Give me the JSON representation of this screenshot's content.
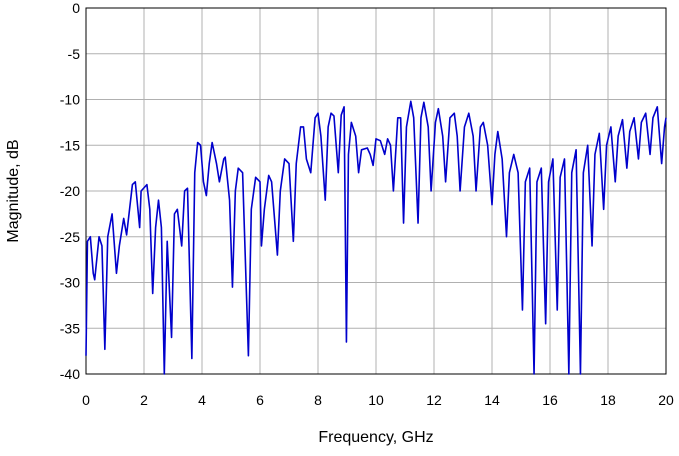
{
  "chart_data": {
    "type": "line",
    "xlabel": "Frequency, GHz",
    "ylabel": "Magnitude, dB",
    "xlim": [
      0,
      20
    ],
    "xticks": [
      0,
      2,
      4,
      6,
      8,
      10,
      12,
      14,
      16,
      18,
      20
    ],
    "ylim": [
      -40,
      0
    ],
    "yticks": [
      0,
      -5,
      -10,
      -15,
      -20,
      -25,
      -30,
      -35,
      -40
    ],
    "grid": true,
    "series": [
      {
        "color": "#0000cc",
        "x": [
          0.0,
          0.05,
          0.15,
          0.25,
          0.3,
          0.45,
          0.55,
          0.65,
          0.75,
          0.9,
          1.05,
          1.15,
          1.3,
          1.4,
          1.6,
          1.7,
          1.85,
          1.9,
          2.1,
          2.2,
          2.3,
          2.4,
          2.5,
          2.6,
          2.7,
          2.8,
          2.95,
          3.05,
          3.15,
          3.3,
          3.4,
          3.5,
          3.65,
          3.75,
          3.85,
          3.95,
          4.05,
          4.15,
          4.25,
          4.35,
          4.5,
          4.6,
          4.75,
          4.8,
          4.95,
          5.05,
          5.15,
          5.25,
          5.4,
          5.6,
          5.7,
          5.85,
          6.0,
          6.05,
          6.15,
          6.3,
          6.4,
          6.6,
          6.7,
          6.85,
          7.0,
          7.15,
          7.25,
          7.4,
          7.5,
          7.6,
          7.75,
          7.9,
          8.0,
          8.1,
          8.25,
          8.35,
          8.45,
          8.55,
          8.7,
          8.8,
          8.9,
          8.98,
          9.05,
          9.15,
          9.3,
          9.4,
          9.5,
          9.7,
          9.8,
          9.9,
          10.0,
          10.15,
          10.3,
          10.4,
          10.5,
          10.6,
          10.75,
          10.85,
          10.95,
          11.05,
          11.2,
          11.3,
          11.45,
          11.55,
          11.65,
          11.8,
          11.9,
          12.05,
          12.15,
          12.3,
          12.4,
          12.55,
          12.7,
          12.8,
          12.9,
          13.05,
          13.2,
          13.35,
          13.45,
          13.6,
          13.7,
          13.85,
          14.0,
          14.1,
          14.2,
          14.35,
          14.5,
          14.6,
          14.75,
          14.9,
          15.05,
          15.15,
          15.3,
          15.45,
          15.55,
          15.7,
          15.85,
          15.95,
          16.1,
          16.25,
          16.35,
          16.5,
          16.65,
          16.75,
          16.9,
          17.05,
          17.15,
          17.3,
          17.45,
          17.55,
          17.7,
          17.85,
          17.95,
          18.1,
          18.25,
          18.35,
          18.5,
          18.65,
          18.75,
          18.9,
          19.05,
          19.15,
          19.3,
          19.45,
          19.55,
          19.7,
          19.85,
          19.95,
          20.0
        ],
        "values": [
          -38,
          -25.5,
          -25,
          -29,
          -29.7,
          -25,
          -26,
          -37.3,
          -25,
          -22.5,
          -29,
          -26,
          -23,
          -24.8,
          -19.3,
          -19,
          -24,
          -20,
          -19.3,
          -22,
          -31.2,
          -24,
          -21,
          -24,
          -40,
          -25.5,
          -36,
          -22.5,
          -22,
          -26,
          -20,
          -19.7,
          -38.3,
          -18,
          -14.7,
          -15,
          -19,
          -20.5,
          -17,
          -14.7,
          -17,
          -19,
          -16.5,
          -16.3,
          -21,
          -30.5,
          -20,
          -17.5,
          -18,
          -38,
          -22,
          -18.5,
          -19,
          -26,
          -22,
          -18.3,
          -19,
          -27,
          -20,
          -16.5,
          -17,
          -25.5,
          -17,
          -13,
          -13,
          -16.5,
          -18,
          -12,
          -11.5,
          -14,
          -21,
          -13,
          -11.5,
          -11.8,
          -18,
          -11.7,
          -10.8,
          -36.5,
          -16,
          -12.5,
          -14,
          -18,
          -15.5,
          -15.3,
          -16,
          -17.2,
          -14.3,
          -14.5,
          -16,
          -14.3,
          -15,
          -20,
          -12,
          -12,
          -23.5,
          -13,
          -10.2,
          -12,
          -23.5,
          -12,
          -10.3,
          -13,
          -20,
          -12.5,
          -11,
          -14,
          -19,
          -12,
          -11.5,
          -14,
          -20,
          -13,
          -11.5,
          -14,
          -20,
          -13,
          -12.5,
          -15,
          -21.5,
          -16,
          -13.5,
          -16.5,
          -25,
          -18,
          -16,
          -18,
          -33,
          -19,
          -17.5,
          -40,
          -19,
          -17.5,
          -34.5,
          -19,
          -16.5,
          -33,
          -18.5,
          -16.5,
          -40,
          -18,
          -15.5,
          -40,
          -18,
          -15,
          -26,
          -16,
          -13.7,
          -22,
          -15,
          -13,
          -19,
          -14,
          -12.2,
          -17.5,
          -13.5,
          -12,
          -16.5,
          -12.5,
          -11.5,
          -16,
          -12,
          -10.8,
          -17,
          -13,
          -12
        ]
      }
    ]
  }
}
